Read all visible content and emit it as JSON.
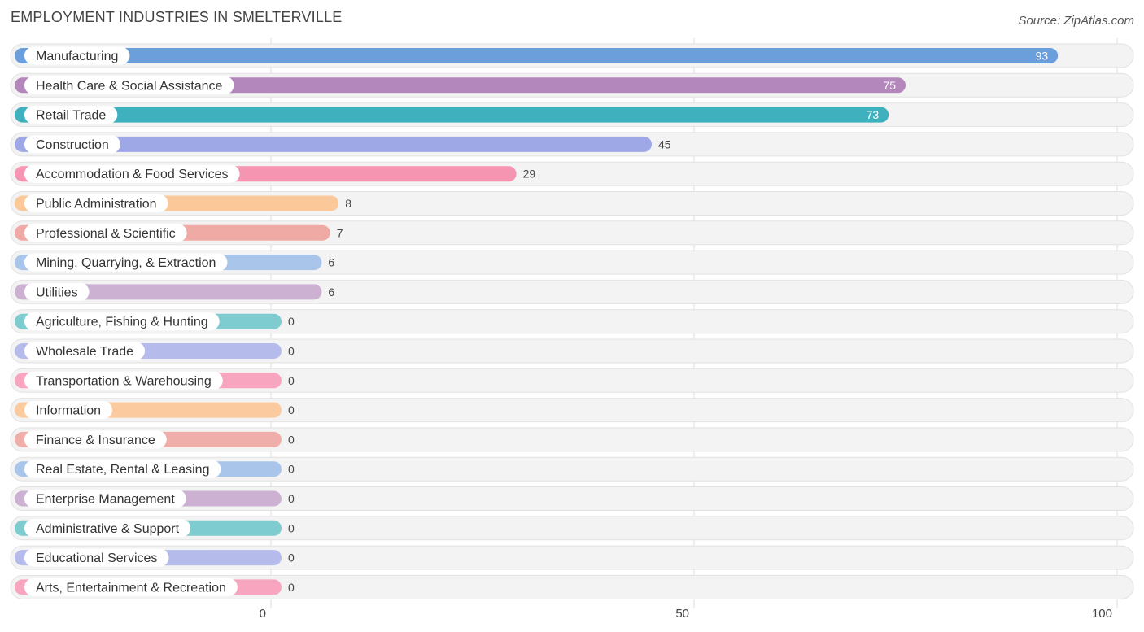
{
  "header": {
    "title": "EMPLOYMENT INDUSTRIES IN SMELTERVILLE",
    "source": "Source: ZipAtlas.com"
  },
  "chart_data": {
    "type": "bar",
    "orientation": "horizontal",
    "title": "EMPLOYMENT INDUSTRIES IN SMELTERVILLE",
    "xlim": [
      0,
      100
    ],
    "xticks": [
      0,
      50,
      100
    ],
    "grid": true,
    "categories": [
      "Manufacturing",
      "Health Care & Social Assistance",
      "Retail Trade",
      "Construction",
      "Accommodation & Food Services",
      "Public Administration",
      "Professional & Scientific",
      "Mining, Quarrying, & Extraction",
      "Utilities",
      "Agriculture, Fishing & Hunting",
      "Wholesale Trade",
      "Transportation & Warehousing",
      "Information",
      "Finance & Insurance",
      "Real Estate, Rental & Leasing",
      "Enterprise Management",
      "Administrative & Support",
      "Educational Services",
      "Arts, Entertainment & Recreation"
    ],
    "values": [
      93,
      75,
      73,
      45,
      29,
      8,
      7,
      6,
      6,
      0,
      0,
      0,
      0,
      0,
      0,
      0,
      0,
      0,
      0
    ],
    "colors": [
      "#6a9fdc",
      "#b387bb",
      "#3fb0bd",
      "#9ea8e6",
      "#f595b2",
      "#fbc89a",
      "#efaaa5",
      "#a9c6ea",
      "#cdb1d3",
      "#7ecbd0",
      "#b5bcec",
      "#f8a6c0",
      "#fbcb9f",
      "#f0aeaa",
      "#a9c6ea",
      "#cdb1d3",
      "#7ecbd0",
      "#b5bcec",
      "#f8a6c0"
    ]
  }
}
